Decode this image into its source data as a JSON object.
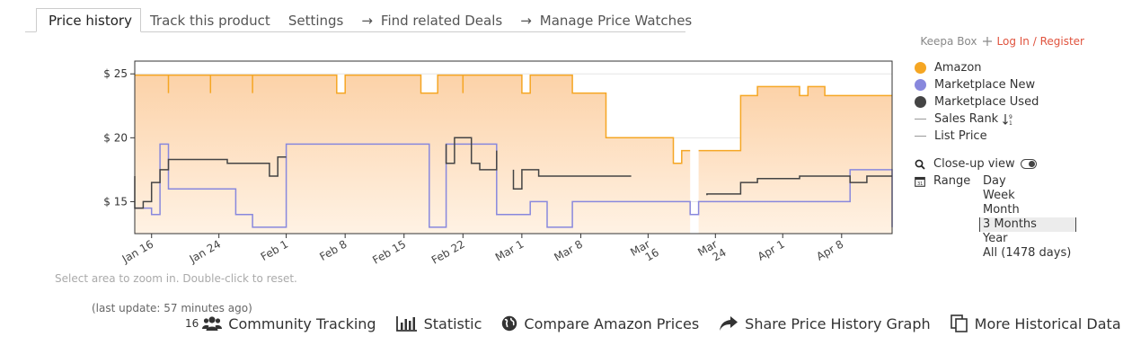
{
  "tabs": [
    {
      "label": "Price history",
      "active": true
    },
    {
      "label": "Track this product",
      "active": false
    },
    {
      "label": "Settings",
      "active": false
    },
    {
      "label": "Find related Deals",
      "active": false,
      "arrow": "→"
    },
    {
      "label": "Manage Price Watches",
      "active": false,
      "arrow": "→"
    }
  ],
  "topright": {
    "brand": "Keepa Box",
    "login": "Log In / Register"
  },
  "legend": {
    "items": [
      {
        "label": "Amazon",
        "color": "#f5a623",
        "marker": "dot"
      },
      {
        "label": "Marketplace New",
        "color": "#8888dd",
        "marker": "dot"
      },
      {
        "label": "Marketplace Used",
        "color": "#444444",
        "marker": "dot"
      },
      {
        "label": "Sales Rank",
        "color": "#999999",
        "marker": "line",
        "icon": "sort-numeric-icon"
      },
      {
        "label": "List Price",
        "color": "#999999",
        "marker": "line"
      }
    ],
    "closeup": "Close-up view",
    "range_label": "Range",
    "ranges": [
      "Day",
      "Week",
      "Month",
      "3 Months",
      "Year",
      "All (1478 days)"
    ],
    "selected_range": "3 Months"
  },
  "hint": "Select area to zoom in. Double-click to reset.",
  "last_update": "(last update: 57 minutes ago)",
  "bottom": {
    "tracking_count": "16",
    "items": [
      {
        "label": "Community Tracking",
        "icon": "users-icon"
      },
      {
        "label": "Statistic",
        "icon": "bar-chart-icon"
      },
      {
        "label": "Compare Amazon Prices",
        "icon": "globe-icon"
      },
      {
        "label": "Share Price History Graph",
        "icon": "share-arrow-icon"
      },
      {
        "label": "More Historical Data",
        "icon": "copy-icon"
      }
    ]
  },
  "chart_data": {
    "type": "line",
    "x_domain": [
      "2021-01-14",
      "2021-04-14"
    ],
    "ylim": [
      12.5,
      26
    ],
    "y_ticks": [
      15,
      20,
      25
    ],
    "y_tick_labels": [
      "$ 15",
      "$ 20",
      "$ 25"
    ],
    "x_ticks": [
      "2021-01-16",
      "2021-01-24",
      "2021-02-01",
      "2021-02-08",
      "2021-02-15",
      "2021-02-22",
      "2021-03-01",
      "2021-03-08",
      "2021-03-16",
      "2021-03-24",
      "2021-04-01",
      "2021-04-08"
    ],
    "x_tick_labels": [
      "Jan 16",
      "Jan 24",
      "Feb 1",
      "Feb 8",
      "Feb 15",
      "Feb 22",
      "Mar 1",
      "Mar 8",
      "Mar 16",
      "Mar 24",
      "Apr 1",
      "Apr 8"
    ],
    "series": [
      {
        "name": "Amazon",
        "color": "#f5a623",
        "fill": true,
        "points": [
          [
            "2021-01-14",
            24.9
          ],
          [
            "2021-01-18",
            24.9
          ],
          [
            "2021-01-18",
            23.5
          ],
          [
            "2021-01-18",
            24.9
          ],
          [
            "2021-01-23",
            24.9
          ],
          [
            "2021-01-23",
            23.5
          ],
          [
            "2021-01-23",
            24.9
          ],
          [
            "2021-01-28",
            24.9
          ],
          [
            "2021-01-28",
            23.5
          ],
          [
            "2021-01-28",
            24.9
          ],
          [
            "2021-02-07",
            24.9
          ],
          [
            "2021-02-07",
            23.5
          ],
          [
            "2021-02-08",
            23.5
          ],
          [
            "2021-02-08",
            24.9
          ],
          [
            "2021-02-17",
            24.9
          ],
          [
            "2021-02-17",
            23.5
          ],
          [
            "2021-02-19",
            23.5
          ],
          [
            "2021-02-19",
            24.9
          ],
          [
            "2021-02-22",
            24.9
          ],
          [
            "2021-02-22",
            23.5
          ],
          [
            "2021-02-22",
            24.9
          ],
          [
            "2021-03-01",
            24.9
          ],
          [
            "2021-03-01",
            23.5
          ],
          [
            "2021-03-02",
            23.5
          ],
          [
            "2021-03-02",
            24.9
          ],
          [
            "2021-03-07",
            24.9
          ],
          [
            "2021-03-07",
            23.5
          ],
          [
            "2021-03-11",
            23.5
          ],
          [
            "2021-03-11",
            20.0
          ],
          [
            "2021-03-19",
            20.0
          ],
          [
            "2021-03-19",
            18.0
          ],
          [
            "2021-03-20",
            18.0
          ],
          [
            "2021-03-20",
            19.0
          ],
          [
            "2021-03-21",
            19.0
          ]
        ]
      },
      {
        "name": "Amazon",
        "color": "#f5a623",
        "fill": true,
        "points": [
          [
            "2021-03-22",
            19.0
          ],
          [
            "2021-03-27",
            19.0
          ],
          [
            "2021-03-27",
            23.3
          ],
          [
            "2021-03-29",
            23.3
          ],
          [
            "2021-03-29",
            24.0
          ],
          [
            "2021-04-03",
            24.0
          ],
          [
            "2021-04-03",
            23.3
          ],
          [
            "2021-04-04",
            23.3
          ],
          [
            "2021-04-04",
            24.0
          ],
          [
            "2021-04-06",
            24.0
          ],
          [
            "2021-04-06",
            23.3
          ],
          [
            "2021-04-14",
            23.3
          ]
        ]
      },
      {
        "name": "Marketplace New",
        "color": "#8888dd",
        "fill": false,
        "points": [
          [
            "2021-01-14",
            14.5
          ],
          [
            "2021-01-16",
            14.5
          ],
          [
            "2021-01-16",
            14.0
          ],
          [
            "2021-01-17",
            14.0
          ],
          [
            "2021-01-17",
            19.5
          ],
          [
            "2021-01-18",
            19.5
          ],
          [
            "2021-01-18",
            16.0
          ],
          [
            "2021-01-26",
            16.0
          ],
          [
            "2021-01-26",
            14.0
          ],
          [
            "2021-01-28",
            14.0
          ],
          [
            "2021-01-28",
            13.0
          ],
          [
            "2021-02-01",
            13.0
          ],
          [
            "2021-02-01",
            19.5
          ],
          [
            "2021-02-18",
            19.5
          ],
          [
            "2021-02-18",
            13.0
          ],
          [
            "2021-02-20",
            13.0
          ],
          [
            "2021-02-20",
            19.5
          ],
          [
            "2021-02-26",
            19.5
          ],
          [
            "2021-02-26",
            14.0
          ],
          [
            "2021-03-02",
            14.0
          ],
          [
            "2021-03-02",
            15.0
          ],
          [
            "2021-03-04",
            15.0
          ],
          [
            "2021-03-04",
            13.0
          ],
          [
            "2021-03-07",
            13.0
          ],
          [
            "2021-03-07",
            15.0
          ],
          [
            "2021-03-21",
            15.0
          ],
          [
            "2021-03-21",
            14.0
          ],
          [
            "2021-03-22",
            14.0
          ],
          [
            "2021-03-22",
            15.0
          ],
          [
            "2021-04-09",
            15.0
          ],
          [
            "2021-04-09",
            17.5
          ],
          [
            "2021-04-14",
            17.5
          ],
          [
            "2021-04-14",
            13.0
          ]
        ]
      },
      {
        "name": "Marketplace Used",
        "color": "#444444",
        "fill": false,
        "points": [
          [
            "2021-01-14",
            17.0
          ],
          [
            "2021-01-14",
            14.5
          ],
          [
            "2021-01-15",
            14.5
          ],
          [
            "2021-01-15",
            15.0
          ],
          [
            "2021-01-16",
            15.0
          ],
          [
            "2021-01-16",
            16.5
          ],
          [
            "2021-01-17",
            16.5
          ],
          [
            "2021-01-17",
            17.5
          ],
          [
            "2021-01-18",
            17.5
          ],
          [
            "2021-01-18",
            18.3
          ],
          [
            "2021-01-25",
            18.3
          ],
          [
            "2021-01-25",
            18.0
          ],
          [
            "2021-01-30",
            18.0
          ],
          [
            "2021-01-30",
            17.0
          ],
          [
            "2021-01-31",
            17.0
          ],
          [
            "2021-01-31",
            18.5
          ],
          [
            "2021-02-01",
            18.5
          ]
        ]
      },
      {
        "name": "Marketplace Used",
        "color": "#444444",
        "fill": false,
        "points": [
          [
            "2021-02-20",
            19.5
          ],
          [
            "2021-02-20",
            18.0
          ],
          [
            "2021-02-21",
            18.0
          ],
          [
            "2021-02-21",
            20.0
          ],
          [
            "2021-02-23",
            20.0
          ],
          [
            "2021-02-23",
            18.0
          ],
          [
            "2021-02-24",
            18.0
          ],
          [
            "2021-02-24",
            17.5
          ],
          [
            "2021-02-26",
            17.5
          ],
          [
            "2021-02-26",
            19.0
          ]
        ]
      },
      {
        "name": "Marketplace Used",
        "color": "#444444",
        "fill": false,
        "points": [
          [
            "2021-02-28",
            17.5
          ],
          [
            "2021-02-28",
            16.0
          ],
          [
            "2021-03-01",
            16.0
          ],
          [
            "2021-03-01",
            17.5
          ],
          [
            "2021-03-03",
            17.5
          ],
          [
            "2021-03-03",
            17.0
          ],
          [
            "2021-03-14",
            17.0
          ]
        ]
      },
      {
        "name": "Marketplace Used",
        "color": "#444444",
        "fill": false,
        "points": [
          [
            "2021-03-23",
            15.5
          ],
          [
            "2021-03-23",
            15.6
          ],
          [
            "2021-03-27",
            15.6
          ],
          [
            "2021-03-27",
            16.5
          ],
          [
            "2021-03-29",
            16.5
          ],
          [
            "2021-03-29",
            16.8
          ],
          [
            "2021-04-03",
            16.8
          ],
          [
            "2021-04-03",
            17.0
          ],
          [
            "2021-04-09",
            17.0
          ],
          [
            "2021-04-09",
            16.5
          ],
          [
            "2021-04-11",
            16.5
          ],
          [
            "2021-04-11",
            17.0
          ],
          [
            "2021-04-14",
            17.0
          ]
        ]
      }
    ]
  }
}
